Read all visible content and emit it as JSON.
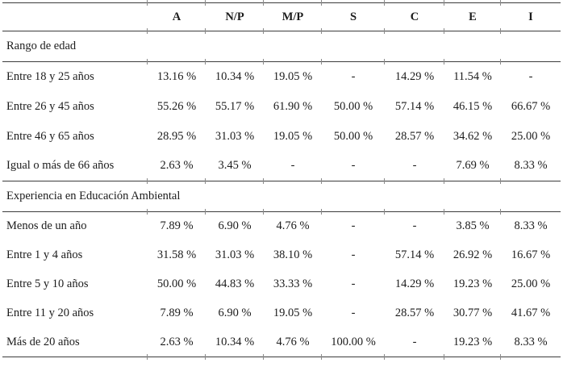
{
  "table": {
    "columns": [
      "",
      "A",
      "N/P",
      "M/P",
      "S",
      "C",
      "E",
      "I"
    ],
    "sections": [
      {
        "title": "Rango de edad",
        "rows": [
          {
            "label": "Entre 18 y 25 años",
            "values": [
              "13.16 %",
              "10.34 %",
              "19.05 %",
              "-",
              "14.29 %",
              "11.54 %",
              "-"
            ]
          },
          {
            "label": "Entre 26 y 45 años",
            "values": [
              "55.26 %",
              "55.17 %",
              "61.90 %",
              "50.00 %",
              "57.14 %",
              "46.15 %",
              "66.67 %"
            ]
          },
          {
            "label": "Entre 46 y 65 años",
            "values": [
              "28.95 %",
              "31.03 %",
              "19.05 %",
              "50.00 %",
              "28.57 %",
              "34.62 %",
              "25.00 %"
            ]
          },
          {
            "label": "Igual o más de 66 años",
            "values": [
              "2.63 %",
              "3.45 %",
              "-",
              "-",
              "-",
              "7.69 %",
              "8.33 %"
            ]
          }
        ]
      },
      {
        "title": "Experiencia en Educación Ambiental",
        "rows": [
          {
            "label": "Menos de un año",
            "values": [
              "7.89 %",
              "6.90 %",
              "4.76 %",
              "-",
              "-",
              "3.85 %",
              "8.33 %"
            ]
          },
          {
            "label": "Entre 1 y 4 años",
            "values": [
              "31.58 %",
              "31.03 %",
              "38.10 %",
              "-",
              "57.14 %",
              "26.92 %",
              "16.67 %"
            ]
          },
          {
            "label": "Entre 5 y 10 años",
            "values": [
              "50.00 %",
              "44.83 %",
              "33.33 %",
              "-",
              "14.29 %",
              "19.23 %",
              "25.00 %"
            ]
          },
          {
            "label": "Entre 11 y 20 años",
            "values": [
              "7.89 %",
              "6.90 %",
              "19.05 %",
              "-",
              "28.57 %",
              "30.77 %",
              "41.67 %"
            ]
          },
          {
            "label": "Más de 20 años",
            "values": [
              "2.63 %",
              "10.34 %",
              "4.76 %",
              "100.00 %",
              "-",
              "19.23 %",
              "8.33 %"
            ]
          }
        ]
      }
    ]
  }
}
